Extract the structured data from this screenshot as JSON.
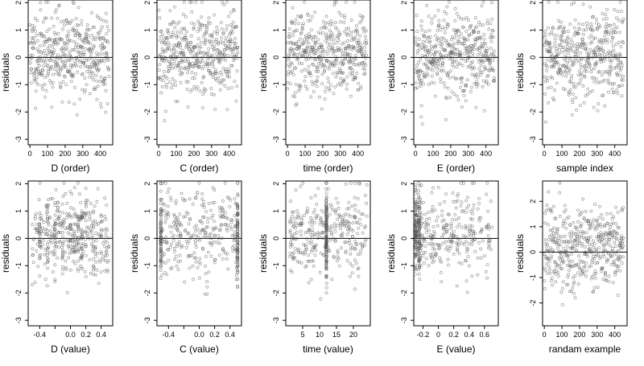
{
  "ylabel": "residuals",
  "chart_data": [
    {
      "type": "scatter",
      "xlabel": "D (order)",
      "ylabel": "residuals",
      "xlim": [
        -10,
        470
      ],
      "ylim": [
        -3.2,
        2.1
      ],
      "xticks": [
        0,
        100,
        200,
        300,
        400
      ],
      "yticks": [
        -3,
        -2,
        -1,
        0,
        1,
        2
      ],
      "hline": 0,
      "n_points": 450,
      "seed": 11,
      "x_kind": "index"
    },
    {
      "type": "scatter",
      "xlabel": "C (order)",
      "ylabel": "residuals",
      "xlim": [
        -10,
        470
      ],
      "ylim": [
        -3.2,
        2.1
      ],
      "xticks": [
        0,
        100,
        200,
        300,
        400
      ],
      "yticks": [
        -3,
        -2,
        -1,
        0,
        1,
        2
      ],
      "hline": 0,
      "n_points": 450,
      "seed": 12,
      "x_kind": "index"
    },
    {
      "type": "scatter",
      "xlabel": "time (order)",
      "ylabel": "residuals",
      "xlim": [
        -10,
        470
      ],
      "ylim": [
        -3.2,
        2.1
      ],
      "xticks": [
        0,
        100,
        200,
        300,
        400
      ],
      "yticks": [
        -3,
        -2,
        -1,
        0,
        1,
        2
      ],
      "hline": 0,
      "n_points": 450,
      "seed": 13,
      "x_kind": "index"
    },
    {
      "type": "scatter",
      "xlabel": "E (order)",
      "ylabel": "residuals",
      "xlim": [
        -10,
        470
      ],
      "ylim": [
        -3.2,
        2.1
      ],
      "xticks": [
        0,
        100,
        200,
        300,
        400
      ],
      "yticks": [
        -3,
        -2,
        -1,
        0,
        1,
        2
      ],
      "hline": 0,
      "n_points": 450,
      "seed": 14,
      "x_kind": "index"
    },
    {
      "type": "scatter",
      "xlabel": "sample index",
      "ylabel": "residuals",
      "xlim": [
        -10,
        470
      ],
      "ylim": [
        -3.2,
        2.1
      ],
      "xticks": [
        0,
        100,
        200,
        300,
        400
      ],
      "yticks": [
        -3,
        -2,
        -1,
        0,
        1,
        2
      ],
      "hline": 0,
      "n_points": 450,
      "seed": 15,
      "x_kind": "index"
    },
    {
      "type": "scatter",
      "xlabel": "D (value)",
      "ylabel": "residuals",
      "xlim": [
        -0.55,
        0.55
      ],
      "ylim": [
        -3.2,
        2.1
      ],
      "xticks": [
        -0.4,
        -0.2,
        0.0,
        0.2,
        0.4
      ],
      "xtick_labels": [
        "-0.4",
        "",
        "0.0",
        "0.2",
        "0.4"
      ],
      "yticks": [
        -3,
        -2,
        -1,
        0,
        1,
        2
      ],
      "hline": 0,
      "n_points": 450,
      "seed": 21,
      "x_kind": "cluster",
      "clusters": [
        -0.4,
        -0.3,
        -0.2,
        -0.1,
        0.0,
        0.05,
        0.1,
        0.15,
        0.2,
        0.3,
        0.4
      ],
      "x_range": [
        -0.5,
        0.5
      ]
    },
    {
      "type": "scatter",
      "xlabel": "C (value)",
      "ylabel": "residuals",
      "xlim": [
        -0.55,
        0.55
      ],
      "ylim": [
        -3.2,
        2.1
      ],
      "xticks": [
        -0.4,
        -0.2,
        0.0,
        0.2,
        0.4
      ],
      "xtick_labels": [
        "-0.4",
        "",
        "0.0",
        "0.2",
        "0.4"
      ],
      "yticks": [
        -3,
        -2,
        -1,
        0,
        1,
        2
      ],
      "hline": 0,
      "n_points": 450,
      "seed": 22,
      "x_kind": "cluster",
      "clusters": [
        -0.5,
        0.5
      ],
      "x_range": [
        -0.5,
        0.5
      ]
    },
    {
      "type": "scatter",
      "xlabel": "time (value)",
      "ylabel": "residuals",
      "xlim": [
        0,
        25
      ],
      "ylim": [
        -3.2,
        2.1
      ],
      "xticks": [
        5,
        10,
        15,
        20
      ],
      "yticks": [
        -3,
        -2,
        -1,
        0,
        1,
        2
      ],
      "hline": 0,
      "n_points": 450,
      "seed": 23,
      "x_kind": "cluster",
      "clusters": [
        12
      ],
      "x_range": [
        1,
        24
      ]
    },
    {
      "type": "scatter",
      "xlabel": "E (value)",
      "ylabel": "residuals",
      "xlim": [
        -0.32,
        0.78
      ],
      "ylim": [
        -3.2,
        2.1
      ],
      "xticks": [
        -0.2,
        0.0,
        0.2,
        0.4,
        0.6
      ],
      "yticks": [
        -3,
        -2,
        -1,
        0,
        1,
        2
      ],
      "hline": 0,
      "n_points": 450,
      "seed": 24,
      "x_kind": "skew",
      "clusters": [
        -0.3,
        -0.25
      ],
      "x_range": [
        -0.3,
        0.7
      ]
    },
    {
      "type": "scatter",
      "xlabel": "randam example",
      "ylabel": "residuals",
      "xlim": [
        -10,
        470
      ],
      "ylim": [
        -2.9,
        2.8
      ],
      "xticks": [
        0,
        100,
        200,
        300,
        400
      ],
      "yticks": [
        -2,
        -1,
        0,
        1,
        2
      ],
      "hline": 0,
      "n_points": 450,
      "seed": 25,
      "x_kind": "index"
    }
  ]
}
